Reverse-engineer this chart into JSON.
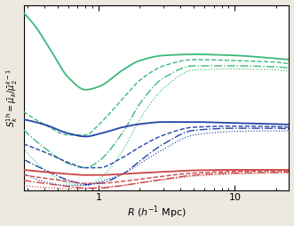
{
  "xlabel": "R (h^{-1} Mpc)",
  "ylabel": "S_k^{1h} = \\bar{\\mu}_k/\\bar{\\mu}_2^{k-1}",
  "xmin": 0.28,
  "xmax": 25,
  "ymin": 0.78,
  "ymax": 4.35,
  "bg_color": "#ffffff",
  "fig_color": "#ede8e0",
  "green": "#3cb87a",
  "blue": "#2244aa",
  "red": "#cc4444",
  "green_solid": {
    "x": [
      0.28,
      0.35,
      0.45,
      0.6,
      0.8,
      1.0,
      1.5,
      2.0,
      3.0,
      5.0,
      10.0,
      20.0,
      25.0
    ],
    "y": [
      4.2,
      3.9,
      3.45,
      2.95,
      2.72,
      2.78,
      3.1,
      3.28,
      3.38,
      3.4,
      3.38,
      3.32,
      3.3
    ]
  },
  "green_dashed": {
    "x": [
      0.28,
      0.4,
      0.6,
      0.8,
      1.0,
      1.5,
      2.0,
      3.0,
      5.0,
      10.0,
      20.0,
      25.0
    ],
    "y": [
      2.3,
      2.05,
      1.85,
      1.85,
      2.05,
      2.55,
      2.9,
      3.18,
      3.3,
      3.28,
      3.25,
      3.22
    ]
  },
  "green_dashdot": {
    "x": [
      0.28,
      0.4,
      0.6,
      0.8,
      1.0,
      1.5,
      2.0,
      3.0,
      5.0,
      10.0,
      20.0,
      25.0
    ],
    "y": [
      1.95,
      1.6,
      1.3,
      1.22,
      1.35,
      1.9,
      2.45,
      2.95,
      3.18,
      3.18,
      3.16,
      3.14
    ]
  },
  "green_dotted": {
    "x": [
      0.28,
      0.4,
      0.6,
      0.8,
      1.0,
      1.5,
      2.0,
      3.0,
      5.0,
      10.0,
      20.0,
      25.0
    ],
    "y": [
      1.6,
      1.18,
      0.92,
      0.88,
      1.0,
      1.55,
      2.15,
      2.75,
      3.1,
      3.12,
      3.1,
      3.08
    ]
  },
  "blue_solid": {
    "x": [
      0.28,
      0.4,
      0.6,
      0.8,
      1.0,
      1.5,
      2.0,
      3.0,
      5.0,
      10.0,
      20.0,
      25.0
    ],
    "y": [
      2.15,
      2.05,
      1.88,
      1.82,
      1.87,
      2.0,
      2.06,
      2.1,
      2.1,
      2.08,
      2.06,
      2.05
    ]
  },
  "blue_dashed": {
    "x": [
      0.28,
      0.4,
      0.6,
      0.8,
      1.0,
      1.5,
      2.0,
      3.0,
      5.0,
      10.0,
      20.0,
      25.0
    ],
    "y": [
      1.68,
      1.52,
      1.32,
      1.22,
      1.22,
      1.42,
      1.62,
      1.85,
      2.0,
      2.02,
      2.01,
      2.0
    ]
  },
  "blue_dashdot": {
    "x": [
      0.28,
      0.4,
      0.6,
      0.8,
      1.0,
      1.5,
      2.0,
      3.0,
      5.0,
      10.0,
      20.0,
      25.0
    ],
    "y": [
      1.38,
      1.18,
      0.98,
      0.9,
      0.92,
      1.1,
      1.35,
      1.68,
      1.94,
      1.98,
      1.98,
      1.97
    ]
  },
  "blue_dotted": {
    "x": [
      0.28,
      0.4,
      0.6,
      0.8,
      1.0,
      1.5,
      2.0,
      3.0,
      5.0,
      10.0,
      20.0,
      25.0
    ],
    "y": [
      1.12,
      0.95,
      0.88,
      0.88,
      0.95,
      1.1,
      1.3,
      1.58,
      1.85,
      1.92,
      1.93,
      1.93
    ]
  },
  "red_solid": {
    "x": [
      0.28,
      0.4,
      0.6,
      0.8,
      1.0,
      1.5,
      2.0,
      3.0,
      5.0,
      10.0,
      20.0,
      25.0
    ],
    "y": [
      1.18,
      1.14,
      1.1,
      1.08,
      1.08,
      1.1,
      1.12,
      1.14,
      1.17,
      1.18,
      1.18,
      1.18
    ]
  },
  "red_dashed": {
    "x": [
      0.28,
      0.4,
      0.6,
      0.8,
      1.0,
      1.5,
      2.0,
      3.0,
      5.0,
      10.0,
      20.0,
      25.0
    ],
    "y": [
      1.08,
      1.02,
      0.96,
      0.92,
      0.92,
      0.96,
      1.0,
      1.06,
      1.12,
      1.15,
      1.16,
      1.16
    ]
  },
  "red_dashdot": {
    "x": [
      0.28,
      0.4,
      0.6,
      0.8,
      1.0,
      1.5,
      2.0,
      3.0,
      5.0,
      10.0,
      20.0,
      25.0
    ],
    "y": [
      0.98,
      0.92,
      0.86,
      0.83,
      0.83,
      0.88,
      0.93,
      1.0,
      1.08,
      1.12,
      1.13,
      1.14
    ]
  },
  "red_dotted": {
    "x": [
      0.28,
      0.4,
      0.6,
      0.8,
      1.0,
      1.5,
      2.0,
      3.0,
      5.0,
      10.0,
      20.0,
      25.0
    ],
    "y": [
      0.88,
      0.84,
      0.82,
      0.82,
      0.84,
      0.88,
      0.93,
      0.99,
      1.06,
      1.1,
      1.12,
      1.12
    ]
  }
}
